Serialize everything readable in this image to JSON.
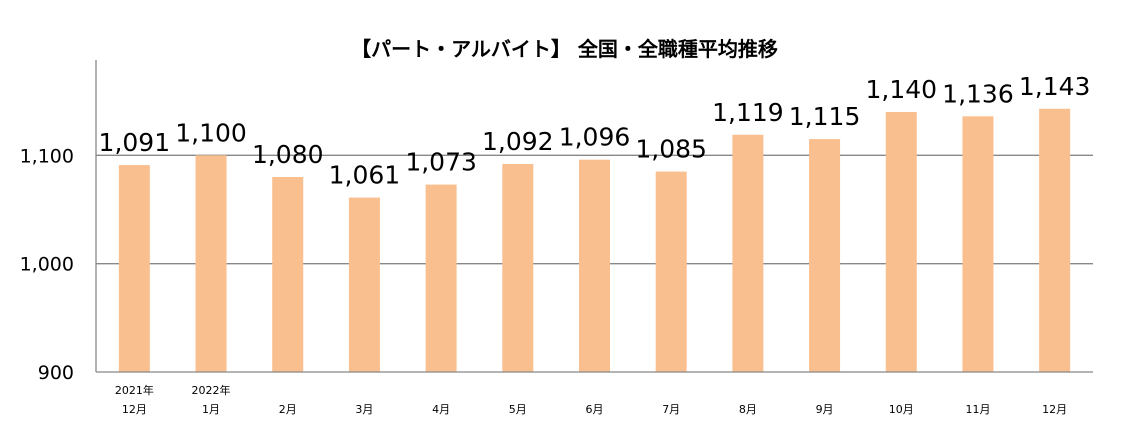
{
  "chart_data": {
    "type": "bar",
    "title": "【パート・アルバイト】 全国・全職種平均推移",
    "categories": [
      [
        "2021年",
        "12月"
      ],
      [
        "2022年",
        "1月"
      ],
      [
        "2月"
      ],
      [
        "3月"
      ],
      [
        "4月"
      ],
      [
        "5月"
      ],
      [
        "6月"
      ],
      [
        "7月"
      ],
      [
        "8月"
      ],
      [
        "9月"
      ],
      [
        "10月"
      ],
      [
        "11月"
      ],
      [
        "12月"
      ]
    ],
    "values": [
      1091,
      1100,
      1080,
      1061,
      1073,
      1092,
      1096,
      1085,
      1119,
      1115,
      1140,
      1136,
      1143
    ],
    "data_labels": [
      "1,091",
      "1,100",
      "1,080",
      "1,061",
      "1,073",
      "1,092",
      "1,096",
      "1,085",
      "1,119",
      "1,115",
      "1,140",
      "1,136",
      "1,143"
    ],
    "ylim": [
      900,
      1200
    ],
    "yticks": [
      {
        "value": 900,
        "label": "900"
      },
      {
        "value": 1000,
        "label": "1,000"
      },
      {
        "value": 1100,
        "label": "1,100"
      }
    ],
    "grid": true,
    "legend": "none",
    "bar_color": "#F9BF8F",
    "grid_color": "#888888"
  }
}
